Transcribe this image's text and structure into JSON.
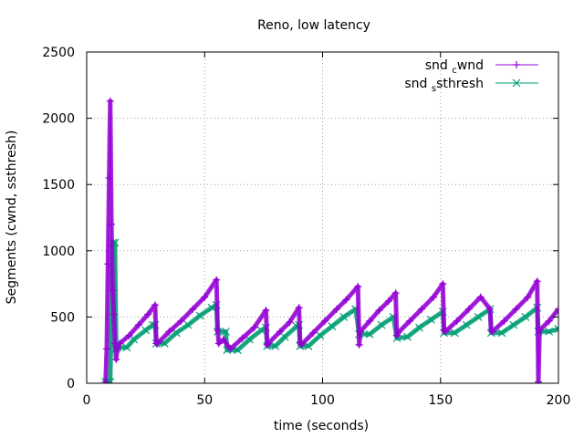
{
  "chart_data": {
    "type": "line",
    "title": "Reno, low latency",
    "xlabel": "time (seconds)",
    "ylabel": "Segments (cwnd, ssthresh)",
    "xlim": [
      0,
      200
    ],
    "ylim": [
      0,
      2500
    ],
    "x_ticks": [
      0,
      50,
      100,
      150,
      200
    ],
    "y_ticks": [
      0,
      500,
      1000,
      1500,
      2000,
      2500
    ],
    "grid": true,
    "legend_position": "top-right",
    "colors": {
      "cwnd": "#9400d3",
      "ssthresh": "#009e73",
      "grid": "#a0a0a0",
      "axis": "#000000"
    },
    "series": [
      {
        "key": "cwnd",
        "name_main": "snd",
        "name_sub": "c",
        "name_rest": "wnd",
        "marker": "plus",
        "points": [
          [
            8,
            10
          ],
          [
            8.5,
            260
          ],
          [
            9,
            900
          ],
          [
            9.5,
            1550
          ],
          [
            10,
            2130
          ],
          [
            10.5,
            1200
          ],
          [
            11,
            700
          ],
          [
            11.5,
            520
          ],
          [
            12,
            300
          ],
          [
            12.5,
            180
          ],
          [
            13,
            260
          ],
          [
            14,
            300
          ],
          [
            18,
            360
          ],
          [
            22,
            440
          ],
          [
            26,
            520
          ],
          [
            29,
            590
          ],
          [
            29.5,
            300
          ],
          [
            30,
            300
          ],
          [
            35,
            390
          ],
          [
            40,
            470
          ],
          [
            45,
            560
          ],
          [
            50,
            650
          ],
          [
            55,
            780
          ],
          [
            55.5,
            400
          ],
          [
            56,
            300
          ],
          [
            58,
            330
          ],
          [
            60,
            280
          ],
          [
            61,
            260
          ],
          [
            66,
            340
          ],
          [
            71,
            420
          ],
          [
            76,
            550
          ],
          [
            76.5,
            290
          ],
          [
            77,
            300
          ],
          [
            82,
            390
          ],
          [
            86,
            460
          ],
          [
            90,
            570
          ],
          [
            90.5,
            310
          ],
          [
            91,
            290
          ],
          [
            96,
            380
          ],
          [
            101,
            470
          ],
          [
            106,
            560
          ],
          [
            110,
            630
          ],
          [
            115,
            730
          ],
          [
            115.5,
            290
          ],
          [
            116,
            390
          ],
          [
            120,
            470
          ],
          [
            124,
            550
          ],
          [
            128,
            620
          ],
          [
            131,
            680
          ],
          [
            131.5,
            360
          ],
          [
            132,
            380
          ],
          [
            137,
            470
          ],
          [
            142,
            560
          ],
          [
            147,
            650
          ],
          [
            151,
            750
          ],
          [
            151.5,
            400
          ],
          [
            152,
            390
          ],
          [
            157,
            470
          ],
          [
            162,
            560
          ],
          [
            167,
            650
          ],
          [
            171,
            560
          ],
          [
            171.5,
            400
          ],
          [
            172,
            390
          ],
          [
            177,
            470
          ],
          [
            182,
            560
          ],
          [
            187,
            650
          ],
          [
            191,
            770
          ],
          [
            191.5,
            10
          ],
          [
            192,
            400
          ],
          [
            196,
            470
          ],
          [
            200,
            560
          ]
        ]
      },
      {
        "key": "ssthresh",
        "name_main": "snd",
        "name_sub": "s",
        "name_rest": "sthresh",
        "marker": "cross",
        "points": [
          [
            8,
            10
          ],
          [
            9,
            10
          ],
          [
            10,
            10
          ],
          [
            11,
            1060
          ],
          [
            12,
            1060
          ],
          [
            12.5,
            260
          ],
          [
            13,
            270
          ],
          [
            17,
            270
          ],
          [
            20,
            330
          ],
          [
            25,
            400
          ],
          [
            28,
            440
          ],
          [
            29,
            440
          ],
          [
            29.5,
            300
          ],
          [
            33,
            300
          ],
          [
            38,
            380
          ],
          [
            43,
            440
          ],
          [
            48,
            510
          ],
          [
            53,
            570
          ],
          [
            55,
            590
          ],
          [
            55.5,
            390
          ],
          [
            59,
            390
          ],
          [
            59.5,
            250
          ],
          [
            64,
            250
          ],
          [
            69,
            330
          ],
          [
            74,
            400
          ],
          [
            76,
            420
          ],
          [
            76.5,
            280
          ],
          [
            80,
            280
          ],
          [
            84,
            350
          ],
          [
            89,
            430
          ],
          [
            90,
            440
          ],
          [
            90.5,
            280
          ],
          [
            94,
            280
          ],
          [
            99,
            360
          ],
          [
            104,
            430
          ],
          [
            109,
            500
          ],
          [
            114,
            560
          ],
          [
            115.5,
            370
          ],
          [
            120,
            370
          ],
          [
            125,
            440
          ],
          [
            130,
            500
          ],
          [
            131.5,
            340
          ],
          [
            136,
            350
          ],
          [
            141,
            420
          ],
          [
            146,
            480
          ],
          [
            151,
            540
          ],
          [
            151.5,
            380
          ],
          [
            156,
            380
          ],
          [
            161,
            440
          ],
          [
            166,
            500
          ],
          [
            171,
            560
          ],
          [
            171.5,
            380
          ],
          [
            176,
            380
          ],
          [
            181,
            440
          ],
          [
            186,
            500
          ],
          [
            191,
            570
          ],
          [
            191.5,
            390
          ],
          [
            196,
            390
          ],
          [
            200,
            410
          ]
        ]
      }
    ]
  }
}
